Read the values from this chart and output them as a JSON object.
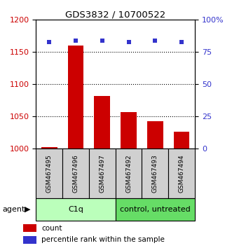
{
  "title": "GDS3832 / 10700522",
  "samples": [
    "GSM467495",
    "GSM467496",
    "GSM467497",
    "GSM467492",
    "GSM467493",
    "GSM467494"
  ],
  "counts": [
    1003,
    1160,
    1082,
    1057,
    1043,
    1027
  ],
  "percentiles": [
    83,
    84,
    84,
    83,
    84,
    83
  ],
  "ylim_left": [
    1000,
    1200
  ],
  "ylim_right": [
    0,
    100
  ],
  "yticks_left": [
    1000,
    1050,
    1100,
    1150,
    1200
  ],
  "yticks_right": [
    0,
    25,
    50,
    75,
    100
  ],
  "ytick_labels_right": [
    "0",
    "25",
    "50",
    "75",
    "100%"
  ],
  "bar_color": "#cc0000",
  "point_color": "#3333cc",
  "group_c1q_color": "#bbffbb",
  "group_ctrl_color": "#66dd66",
  "group_c1q_label": "C1q",
  "group_ctrl_label": "control, untreated",
  "legend_count_label": "count",
  "legend_pct_label": "percentile rank within the sample",
  "agent_label": "agent",
  "bar_width": 0.6,
  "sample_box_color": "#d0d0d0",
  "dotted_gridlines": [
    1050,
    1100,
    1150
  ]
}
